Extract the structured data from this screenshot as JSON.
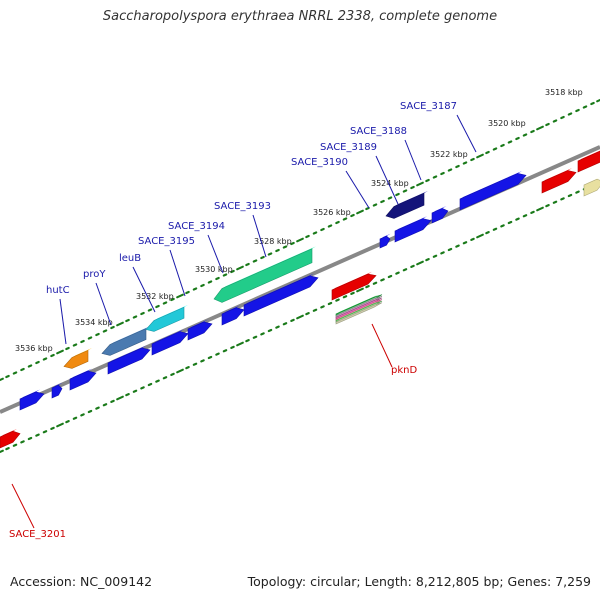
{
  "title": "Saccharopolyspora erythraea NRRL 2338, complete genome",
  "footer": {
    "accession": "Accession: NC_009142",
    "topology": "Topology: circular; Length: 8,212,805 bp; Genes: 7,259"
  },
  "colors": {
    "backbone": "#888888",
    "tick": "#1a7a1a",
    "label_blue": "#1a1aaa",
    "label_red": "#cc0000",
    "gene_blue": "#1414e6",
    "gene_red": "#e60000",
    "gene_navy": "#14147a",
    "gene_teal": "#22cc8a",
    "gene_steel": "#4a7ab0",
    "gene_cyan": "#22c8d8",
    "gene_orange": "#f08a10",
    "gene_pale": "#e8e0a0"
  },
  "scale_labels": [
    "3518 kbp",
    "3520 kbp",
    "3522 kbp",
    "3524 kbp",
    "3526 kbp",
    "3528 kbp",
    "3530 kbp",
    "3532 kbp",
    "3534 kbp",
    "3536 kbp"
  ],
  "gene_labels": [
    {
      "text": "SACE_3187",
      "color": "blue"
    },
    {
      "text": "SACE_3188",
      "color": "blue"
    },
    {
      "text": "SACE_3189",
      "color": "blue"
    },
    {
      "text": "SACE_3190",
      "color": "blue"
    },
    {
      "text": "SACE_3193",
      "color": "blue"
    },
    {
      "text": "SACE_3194",
      "color": "blue"
    },
    {
      "text": "SACE_3195",
      "color": "blue"
    },
    {
      "text": "leuB",
      "color": "blue"
    },
    {
      "text": "proY",
      "color": "blue"
    },
    {
      "text": "hutC",
      "color": "blue"
    },
    {
      "text": "pknD",
      "color": "red"
    },
    {
      "text": "SACE_3201",
      "color": "red"
    }
  ]
}
